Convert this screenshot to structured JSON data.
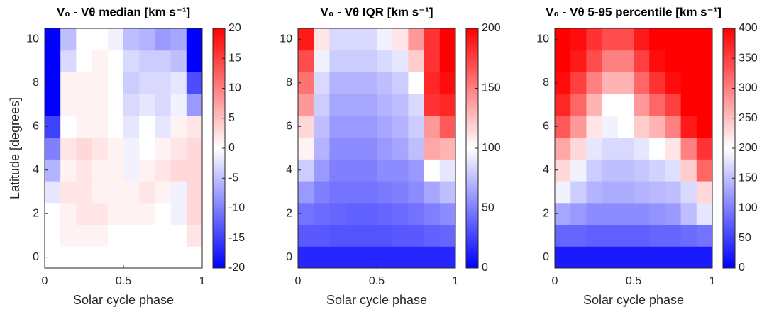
{
  "chart_data": [
    {
      "type": "heatmap",
      "title": "V₀ - Vθ median [km s⁻¹]",
      "xlabel": "Solar cycle phase",
      "ylabel": "Latitude [degrees]",
      "x": [
        0.05,
        0.15,
        0.25,
        0.35,
        0.45,
        0.55,
        0.65,
        0.75,
        0.85,
        0.95
      ],
      "y": [
        0,
        1,
        2,
        3,
        4,
        5,
        6,
        7,
        8,
        9,
        10
      ],
      "xlim": [
        0,
        1
      ],
      "ylim": [
        -0.5,
        10.5
      ],
      "xticks": [
        0,
        0.5,
        1
      ],
      "yticks": [
        0,
        2,
        4,
        6,
        8,
        10
      ],
      "clim": [
        -20,
        20
      ],
      "cticks": [
        -20,
        -15,
        -10,
        -5,
        0,
        5,
        10,
        15,
        20
      ],
      "colormap": [
        "#0000ff",
        "#ffffff",
        "#ff0000"
      ],
      "z": [
        [
          0,
          0,
          0,
          0,
          0,
          0,
          0,
          0,
          0,
          0
        ],
        [
          0,
          1,
          1,
          1,
          0,
          0,
          0,
          0,
          0,
          2
        ],
        [
          0,
          1,
          2,
          2,
          1,
          1,
          1,
          0,
          -1,
          3
        ],
        [
          -2,
          2,
          2,
          1,
          1,
          1,
          2,
          1,
          -1,
          3
        ],
        [
          -6,
          1,
          2,
          1,
          1,
          -1,
          1,
          2,
          3,
          3
        ],
        [
          -10,
          2,
          3,
          2,
          1,
          -1,
          0,
          1,
          2,
          3
        ],
        [
          -15,
          0,
          1,
          1,
          0,
          -2,
          0,
          -2,
          1,
          2
        ],
        [
          -20,
          1,
          1,
          1,
          0,
          -3,
          -2,
          -3,
          -1,
          -8
        ],
        [
          -20,
          1,
          1,
          1,
          0,
          -4,
          -3,
          -3,
          -2,
          -14
        ],
        [
          -20,
          -3,
          0,
          1,
          0,
          -3,
          -4,
          -4,
          -5,
          -20
        ],
        [
          -20,
          -5,
          0,
          0,
          -1,
          -5,
          -6,
          -8,
          -7,
          -20
        ]
      ]
    },
    {
      "type": "heatmap",
      "title": "V₀ - Vθ IQR [km s⁻¹]",
      "xlabel": "Solar cycle phase",
      "x": [
        0.05,
        0.15,
        0.25,
        0.35,
        0.45,
        0.55,
        0.65,
        0.75,
        0.85,
        0.95
      ],
      "y": [
        0,
        1,
        2,
        3,
        4,
        5,
        6,
        7,
        8,
        9,
        10
      ],
      "xlim": [
        0,
        1
      ],
      "ylim": [
        -0.5,
        10.5
      ],
      "xticks": [
        0,
        0.5,
        1
      ],
      "yticks": [
        0,
        2,
        4,
        6,
        8,
        10
      ],
      "clim": [
        0,
        200
      ],
      "cticks": [
        0,
        50,
        100,
        150,
        200
      ],
      "colormap": [
        "#0000ff",
        "#ffffff",
        "#ff0000"
      ],
      "z": [
        [
          15,
          15,
          15,
          15,
          15,
          15,
          15,
          15,
          15,
          15
        ],
        [
          35,
          35,
          33,
          33,
          33,
          33,
          35,
          35,
          38,
          40
        ],
        [
          45,
          42,
          40,
          38,
          38,
          40,
          42,
          45,
          50,
          55
        ],
        [
          60,
          50,
          45,
          45,
          45,
          48,
          50,
          55,
          65,
          75
        ],
        [
          80,
          60,
          50,
          50,
          50,
          55,
          55,
          60,
          100,
          90
        ],
        [
          105,
          70,
          55,
          55,
          55,
          60,
          65,
          75,
          135,
          130
        ],
        [
          115,
          75,
          60,
          60,
          60,
          65,
          70,
          80,
          140,
          165
        ],
        [
          140,
          80,
          65,
          65,
          65,
          70,
          75,
          85,
          180,
          185
        ],
        [
          155,
          85,
          70,
          70,
          70,
          75,
          80,
          100,
          185,
          195
        ],
        [
          170,
          95,
          80,
          80,
          80,
          85,
          90,
          120,
          180,
          200
        ],
        [
          190,
          110,
          85,
          85,
          85,
          95,
          110,
          140,
          180,
          200
        ]
      ]
    },
    {
      "type": "heatmap",
      "title": "V₀ - Vθ 5-95 percentile [km s⁻¹]",
      "xlabel": "Solar cycle phase",
      "x": [
        0.05,
        0.15,
        0.25,
        0.35,
        0.45,
        0.55,
        0.65,
        0.75,
        0.85,
        0.95
      ],
      "y": [
        0,
        1,
        2,
        3,
        4,
        5,
        6,
        7,
        8,
        9,
        10
      ],
      "xlim": [
        0,
        1
      ],
      "ylim": [
        -0.5,
        10.5
      ],
      "xticks": [
        0,
        0.5,
        1
      ],
      "yticks": [
        0,
        2,
        4,
        6,
        8,
        10
      ],
      "clim": [
        0,
        400
      ],
      "cticks": [
        0,
        50,
        100,
        150,
        200,
        250,
        300,
        350,
        400
      ],
      "colormap": [
        "#0000ff",
        "#ffffff",
        "#ff0000"
      ],
      "z": [
        [
          20,
          20,
          20,
          20,
          20,
          20,
          20,
          20,
          20,
          20
        ],
        [
          80,
          80,
          75,
          75,
          75,
          75,
          80,
          80,
          85,
          90
        ],
        [
          130,
          120,
          110,
          110,
          110,
          110,
          115,
          120,
          150,
          180
        ],
        [
          190,
          160,
          140,
          135,
          135,
          140,
          145,
          150,
          170,
          230
        ],
        [
          230,
          190,
          160,
          150,
          150,
          155,
          165,
          175,
          240,
          320
        ],
        [
          270,
          230,
          180,
          170,
          170,
          180,
          200,
          220,
          300,
          360
        ],
        [
          330,
          280,
          220,
          190,
          200,
          240,
          260,
          300,
          380,
          400
        ],
        [
          370,
          320,
          260,
          200,
          200,
          280,
          320,
          350,
          400,
          400
        ],
        [
          390,
          350,
          300,
          260,
          260,
          320,
          360,
          390,
          400,
          400
        ],
        [
          400,
          380,
          340,
          300,
          300,
          350,
          390,
          400,
          400,
          400
        ],
        [
          400,
          390,
          360,
          340,
          340,
          380,
          400,
          400,
          400,
          400
        ]
      ]
    }
  ]
}
